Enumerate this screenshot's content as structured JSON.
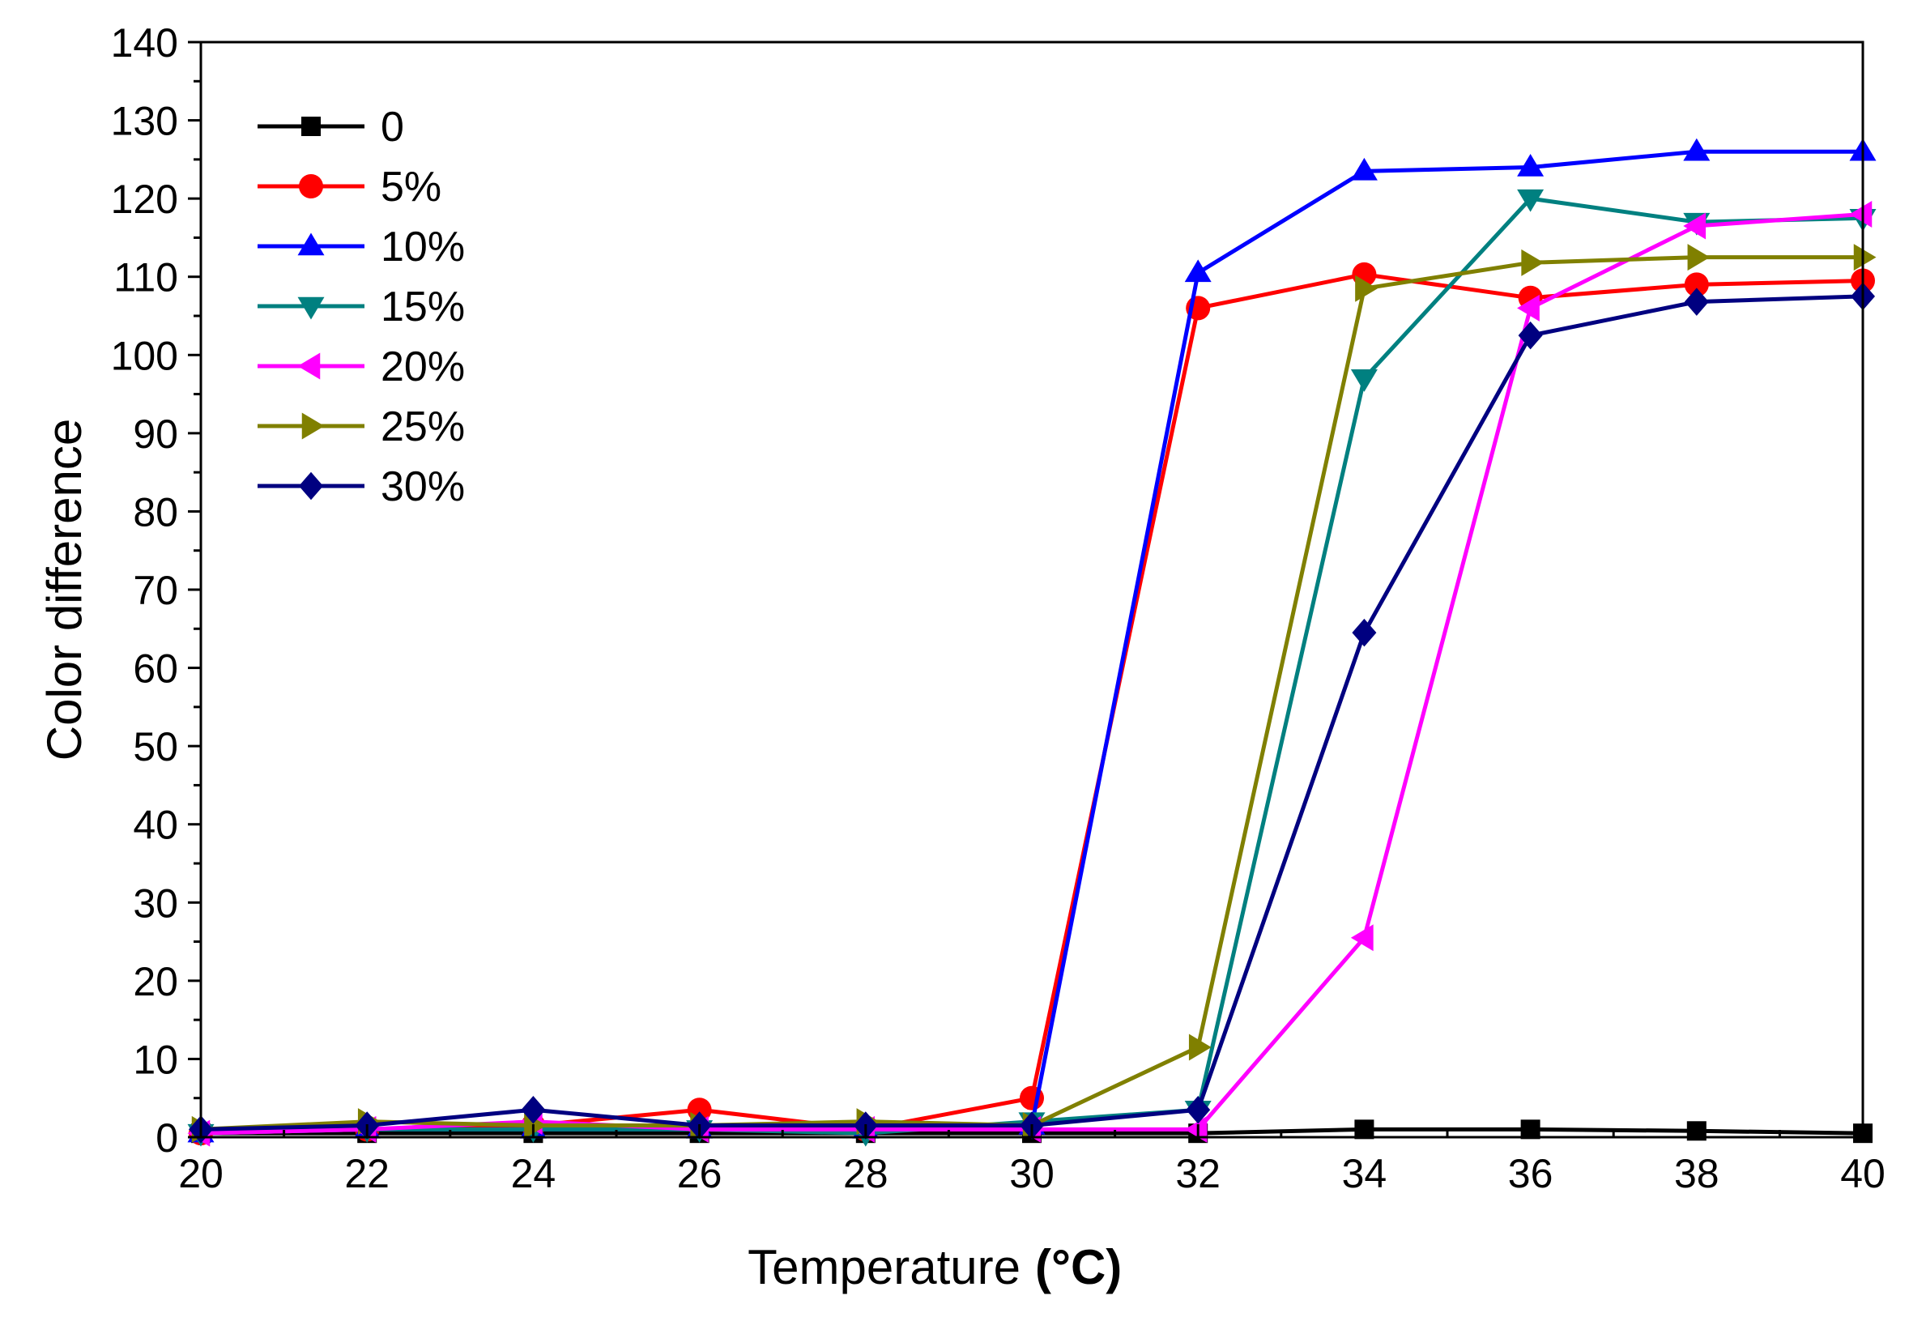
{
  "chart_data": {
    "type": "line",
    "title": "",
    "xlabel": "Temperature",
    "xlabel_unit": "(°C)",
    "ylabel": "Color difference",
    "xlim": [
      20,
      40
    ],
    "ylim": [
      0,
      140
    ],
    "x": [
      20,
      22,
      24,
      26,
      28,
      30,
      32,
      34,
      36,
      38,
      40
    ],
    "x_ticks": [
      "20",
      "22",
      "24",
      "26",
      "28",
      "30",
      "32",
      "34",
      "36",
      "38",
      "40"
    ],
    "y_ticks": [
      "0",
      "10",
      "20",
      "30",
      "40",
      "50",
      "60",
      "70",
      "80",
      "90",
      "100",
      "110",
      "120",
      "130",
      "140"
    ],
    "grid": false,
    "legend_position": "top-left",
    "series": [
      {
        "name": "0",
        "color": "#000000",
        "marker": "square",
        "values": [
          0.5,
          0.5,
          0.5,
          0.5,
          0.5,
          0.5,
          0.5,
          1.0,
          1.0,
          0.8,
          0.5
        ]
      },
      {
        "name": "5%",
        "color": "#ff0000",
        "marker": "circle",
        "values": [
          0.5,
          1.0,
          1.5,
          3.5,
          1.0,
          5.0,
          106.0,
          110.3,
          107.3,
          109.0,
          109.5
        ]
      },
      {
        "name": "10%",
        "color": "#0000ff",
        "marker": "triangle-up",
        "values": [
          0.5,
          1.0,
          1.0,
          1.0,
          1.0,
          1.5,
          110.5,
          123.5,
          124.0,
          126.0,
          126.0
        ]
      },
      {
        "name": "15%",
        "color": "#008080",
        "marker": "triangle-down",
        "values": [
          0.5,
          1.0,
          1.0,
          1.0,
          0.5,
          2.0,
          3.5,
          97.0,
          120.0,
          117.0,
          117.5
        ]
      },
      {
        "name": "20%",
        "color": "#ff00ff",
        "marker": "triangle-left",
        "values": [
          0.5,
          1.0,
          2.0,
          1.0,
          1.0,
          1.0,
          1.0,
          25.5,
          106.0,
          116.5,
          118.0
        ]
      },
      {
        "name": "25%",
        "color": "#808000",
        "marker": "triangle-right",
        "values": [
          1.0,
          2.0,
          1.5,
          1.5,
          2.0,
          1.5,
          11.5,
          108.5,
          111.8,
          112.5,
          112.5
        ]
      },
      {
        "name": "30%",
        "color": "#000080",
        "marker": "diamond",
        "values": [
          1.0,
          1.5,
          3.5,
          1.5,
          1.5,
          1.5,
          3.5,
          64.5,
          102.5,
          106.8,
          107.5
        ]
      }
    ]
  }
}
